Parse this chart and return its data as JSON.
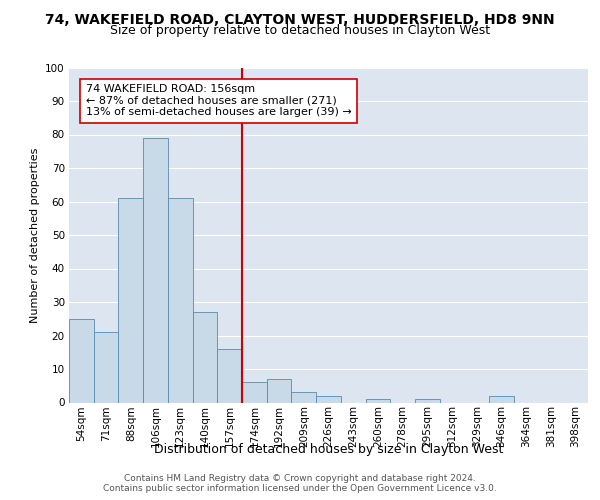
{
  "title1": "74, WAKEFIELD ROAD, CLAYTON WEST, HUDDERSFIELD, HD8 9NN",
  "title2": "Size of property relative to detached houses in Clayton West",
  "xlabel": "Distribution of detached houses by size in Clayton West",
  "ylabel": "Number of detached properties",
  "bar_labels": [
    "54sqm",
    "71sqm",
    "88sqm",
    "106sqm",
    "123sqm",
    "140sqm",
    "157sqm",
    "174sqm",
    "192sqm",
    "209sqm",
    "226sqm",
    "243sqm",
    "260sqm",
    "278sqm",
    "295sqm",
    "312sqm",
    "329sqm",
    "346sqm",
    "364sqm",
    "381sqm",
    "398sqm"
  ],
  "bar_values": [
    25,
    21,
    61,
    79,
    61,
    27,
    16,
    6,
    7,
    3,
    2,
    0,
    1,
    0,
    1,
    0,
    0,
    2,
    0,
    0,
    0
  ],
  "bar_color": "#c8d9e8",
  "bar_edge_color": "#5a8ab0",
  "vline_color": "#cc0000",
  "annotation_text": "74 WAKEFIELD ROAD: 156sqm\n← 87% of detached houses are smaller (271)\n13% of semi-detached houses are larger (39) →",
  "annotation_box_color": "#ffffff",
  "annotation_box_edge": "#cc0000",
  "ylim": [
    0,
    100
  ],
  "yticks": [
    0,
    10,
    20,
    30,
    40,
    50,
    60,
    70,
    80,
    90,
    100
  ],
  "plot_bg_color": "#dde6f0",
  "grid_color": "#ffffff",
  "footer1": "Contains HM Land Registry data © Crown copyright and database right 2024.",
  "footer2": "Contains public sector information licensed under the Open Government Licence v3.0.",
  "title1_fontsize": 10,
  "title2_fontsize": 9,
  "xlabel_fontsize": 9,
  "ylabel_fontsize": 8,
  "tick_fontsize": 7.5,
  "annotation_fontsize": 8,
  "footer_fontsize": 6.5
}
